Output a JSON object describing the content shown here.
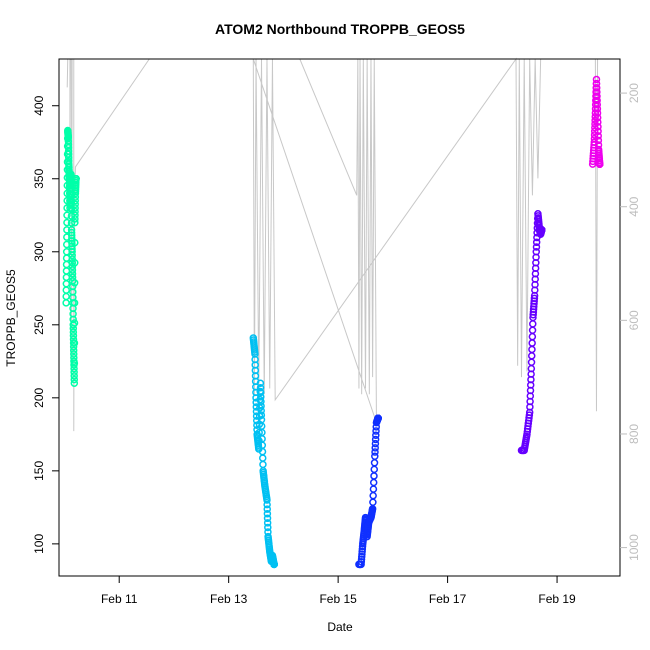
{
  "chart_data": {
    "type": "scatter",
    "title": "ATOM2 Northbound TROPPB_GEOS5",
    "xlabel": "Date",
    "ylabel": "TROPPB_GEOS5",
    "x_ticks": [
      "Feb 11",
      "Feb 13",
      "Feb 15",
      "Feb 17",
      "Feb 19"
    ],
    "x_tick_days": [
      11,
      13,
      15,
      17,
      19
    ],
    "xlim": [
      9.9,
      20.15
    ],
    "ylim": [
      78,
      432
    ],
    "y_ticks": [
      100,
      150,
      200,
      250,
      300,
      350,
      400
    ],
    "y2_ticks": [
      200,
      400,
      600,
      800,
      1000
    ],
    "y2lim": [
      1050,
      140
    ],
    "grid": false,
    "series": [
      {
        "color": "#00ffa8",
        "points": [
          [
            10.03,
            265
          ],
          [
            10.04,
            300
          ],
          [
            10.05,
            340
          ],
          [
            10.06,
            383
          ],
          [
            10.07,
            378
          ],
          [
            10.08,
            360
          ],
          [
            10.09,
            350
          ],
          [
            10.1,
            330
          ],
          [
            10.11,
            345
          ],
          [
            10.12,
            353
          ],
          [
            10.13,
            315
          ],
          [
            10.14,
            300
          ],
          [
            10.15,
            280
          ],
          [
            10.16,
            250
          ],
          [
            10.17,
            230
          ],
          [
            10.18,
            210
          ],
          [
            10.19,
            320
          ],
          [
            10.2,
            340
          ],
          [
            10.21,
            350
          ]
        ]
      },
      {
        "color": "#00c0f2",
        "points": [
          [
            13.45,
            241
          ],
          [
            13.48,
            230
          ],
          [
            13.5,
            200
          ],
          [
            13.52,
            175
          ],
          [
            13.55,
            165
          ],
          [
            13.58,
            210
          ],
          [
            13.6,
            185
          ],
          [
            13.63,
            150
          ],
          [
            13.66,
            140
          ],
          [
            13.7,
            130
          ],
          [
            13.72,
            105
          ],
          [
            13.75,
            95
          ],
          [
            13.78,
            88
          ],
          [
            13.8,
            92
          ],
          [
            13.83,
            86
          ]
        ]
      },
      {
        "color": "#1030ff",
        "points": [
          [
            15.38,
            86
          ],
          [
            15.42,
            86
          ],
          [
            15.45,
            100
          ],
          [
            15.48,
            110
          ],
          [
            15.5,
            118
          ],
          [
            15.53,
            105
          ],
          [
            15.56,
            115
          ],
          [
            15.6,
            118
          ],
          [
            15.63,
            124
          ],
          [
            15.67,
            160
          ],
          [
            15.7,
            183
          ],
          [
            15.73,
            186
          ]
        ]
      },
      {
        "color": "#6600ff",
        "points": [
          [
            18.35,
            164
          ],
          [
            18.4,
            164
          ],
          [
            18.45,
            175
          ],
          [
            18.5,
            190
          ],
          [
            18.53,
            220
          ],
          [
            18.56,
            255
          ],
          [
            18.59,
            270
          ],
          [
            18.62,
            300
          ],
          [
            18.65,
            326
          ],
          [
            18.68,
            315
          ],
          [
            18.7,
            312
          ],
          [
            18.72,
            315
          ]
        ]
      },
      {
        "color": "#ee00ee",
        "points": [
          [
            19.65,
            360
          ],
          [
            19.68,
            375
          ],
          [
            19.7,
            395
          ],
          [
            19.72,
            418
          ],
          [
            19.74,
            395
          ],
          [
            19.76,
            370
          ],
          [
            19.78,
            360
          ]
        ]
      }
    ],
    "right_axis_trace": {
      "color": "#c8c8c8",
      "points": [
        [
          10.05,
          190
        ],
        [
          10.06,
          80
        ],
        [
          10.1,
          80
        ],
        [
          10.1,
          330
        ],
        [
          10.11,
          80
        ],
        [
          10.13,
          80
        ],
        [
          10.13,
          690
        ],
        [
          10.14,
          80
        ],
        [
          10.17,
          80
        ],
        [
          10.17,
          795
        ],
        [
          10.18,
          420
        ],
        [
          10.2,
          330
        ],
        [
          11.55,
          140
        ],
        [
          14.3,
          140
        ],
        [
          15.34,
          380
        ],
        [
          15.36,
          80
        ],
        [
          15.38,
          720
        ],
        [
          15.4,
          80
        ],
        [
          15.43,
          730
        ],
        [
          15.46,
          80
        ],
        [
          15.5,
          720
        ],
        [
          15.53,
          80
        ],
        [
          15.57,
          730
        ],
        [
          15.6,
          80
        ],
        [
          15.63,
          700
        ],
        [
          15.66,
          80
        ],
        [
          15.7,
          780
        ],
        [
          13.45,
          80
        ],
        [
          13.47,
          730
        ],
        [
          13.5,
          80
        ],
        [
          13.55,
          720
        ],
        [
          13.6,
          80
        ],
        [
          13.65,
          730
        ],
        [
          13.7,
          80
        ],
        [
          13.75,
          720
        ],
        [
          13.8,
          80
        ],
        [
          13.85,
          740
        ],
        [
          18.25,
          80
        ],
        [
          18.28,
          680
        ],
        [
          18.31,
          80
        ],
        [
          18.35,
          700
        ],
        [
          18.4,
          80
        ],
        [
          18.45,
          690
        ],
        [
          18.5,
          80
        ],
        [
          18.55,
          380
        ],
        [
          18.6,
          80
        ],
        [
          18.65,
          350
        ],
        [
          18.7,
          80
        ],
        [
          18.75,
          80
        ],
        [
          19.7,
          80
        ],
        [
          19.72,
          760
        ],
        [
          19.74,
          80
        ]
      ]
    }
  }
}
